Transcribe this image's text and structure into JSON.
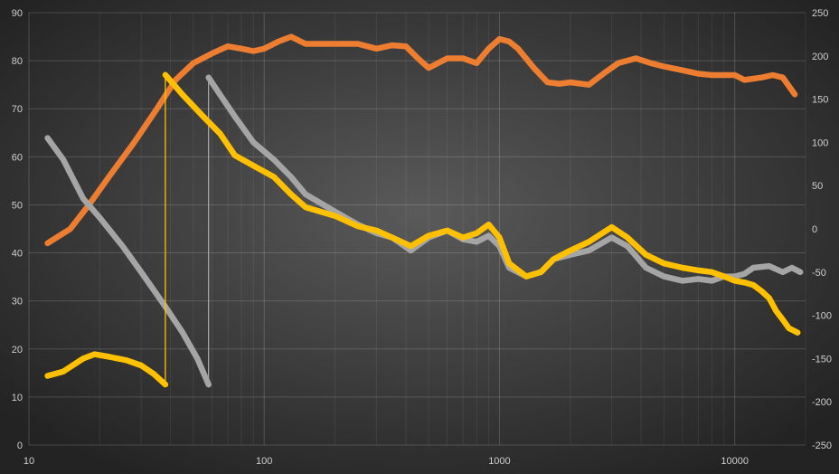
{
  "chart_data": {
    "type": "line",
    "title": "",
    "xlabel": "",
    "ylabel_left": "",
    "ylabel_right": "",
    "x_scale": "log",
    "xlim": [
      10,
      20000
    ],
    "ylim_left": [
      0,
      90
    ],
    "ylim_right": [
      -250,
      250
    ],
    "grid": true,
    "legend": "none",
    "background_colors": [
      "#5a5a5a",
      "#232323"
    ],
    "x_ticks": [
      10,
      100,
      1000,
      10000
    ],
    "x_tick_labels": [
      "10",
      "100",
      "1000",
      "10000"
    ],
    "y_left_ticks": [
      0,
      10,
      20,
      30,
      40,
      50,
      60,
      70,
      80,
      90
    ],
    "y_left_tick_labels": [
      "0",
      "10",
      "20",
      "30",
      "40",
      "50",
      "60",
      "70",
      "80",
      "90"
    ],
    "y_right_ticks": [
      -250,
      -200,
      -150,
      -100,
      -50,
      0,
      50,
      100,
      150,
      200,
      250
    ],
    "y_right_tick_labels": [
      "-250",
      "-200",
      "-150",
      "-100",
      "-50",
      "0",
      "50",
      "100",
      "150",
      "200",
      "250"
    ],
    "series": [
      {
        "axis": "left",
        "color": "#ed7d31",
        "points": [
          [
            12,
            42
          ],
          [
            15,
            45
          ],
          [
            18,
            50
          ],
          [
            22,
            56
          ],
          [
            28,
            63
          ],
          [
            35,
            70
          ],
          [
            42,
            76
          ],
          [
            50,
            79.5
          ],
          [
            60,
            81.5
          ],
          [
            70,
            83
          ],
          [
            80,
            82.5
          ],
          [
            90,
            82
          ],
          [
            100,
            82.5
          ],
          [
            115,
            84
          ],
          [
            130,
            85
          ],
          [
            150,
            83.5
          ],
          [
            200,
            83.5
          ],
          [
            250,
            83.5
          ],
          [
            300,
            82.5
          ],
          [
            350,
            83.2
          ],
          [
            400,
            83
          ],
          [
            450,
            80.5
          ],
          [
            500,
            78.5
          ],
          [
            600,
            80.5
          ],
          [
            700,
            80.5
          ],
          [
            800,
            79.5
          ],
          [
            900,
            82.5
          ],
          [
            1000,
            84.5
          ],
          [
            1100,
            84
          ],
          [
            1200,
            82.5
          ],
          [
            1400,
            78.5
          ],
          [
            1600,
            75.5
          ],
          [
            1800,
            75.2
          ],
          [
            2000,
            75.5
          ],
          [
            2400,
            75
          ],
          [
            2800,
            77.5
          ],
          [
            3200,
            79.5
          ],
          [
            3800,
            80.5
          ],
          [
            4400,
            79.5
          ],
          [
            5000,
            78.8
          ],
          [
            6000,
            78
          ],
          [
            7000,
            77.3
          ],
          [
            8000,
            77
          ],
          [
            10000,
            77
          ],
          [
            11000,
            76
          ],
          [
            13000,
            76.5
          ],
          [
            14500,
            77
          ],
          [
            16000,
            76.5
          ],
          [
            18000,
            73
          ]
        ]
      },
      {
        "axis": "right",
        "color": "#a5a5a5",
        "points": [
          [
            12,
            105
          ],
          [
            14,
            80
          ],
          [
            17,
            35
          ],
          [
            20,
            13
          ],
          [
            25,
            -20
          ],
          [
            30,
            -50
          ],
          [
            38,
            -90
          ],
          [
            45,
            -120
          ],
          [
            52,
            -150
          ],
          [
            58,
            -180
          ],
          [
            58,
            175
          ],
          [
            65,
            155
          ],
          [
            75,
            130
          ],
          [
            90,
            100
          ],
          [
            110,
            80
          ],
          [
            130,
            60
          ],
          [
            150,
            40
          ],
          [
            200,
            20
          ],
          [
            250,
            5
          ],
          [
            300,
            -5
          ],
          [
            350,
            -10
          ],
          [
            420,
            -25
          ],
          [
            500,
            -10
          ],
          [
            600,
            -2
          ],
          [
            700,
            -12
          ],
          [
            800,
            -15
          ],
          [
            900,
            -8
          ],
          [
            1000,
            -20
          ],
          [
            1100,
            -45
          ],
          [
            1300,
            -55
          ],
          [
            1500,
            -50
          ],
          [
            1700,
            -35
          ],
          [
            2000,
            -30
          ],
          [
            2400,
            -25
          ],
          [
            3000,
            -10
          ],
          [
            3500,
            -20
          ],
          [
            4200,
            -45
          ],
          [
            5000,
            -55
          ],
          [
            6000,
            -60
          ],
          [
            7000,
            -58
          ],
          [
            8000,
            -60
          ],
          [
            9000,
            -55
          ],
          [
            10000,
            -55
          ],
          [
            11000,
            -52
          ],
          [
            12000,
            -45
          ],
          [
            14000,
            -43
          ],
          [
            16000,
            -50
          ],
          [
            17500,
            -45
          ],
          [
            19000,
            -50
          ]
        ]
      },
      {
        "axis": "right",
        "color": "#ffc000",
        "points": [
          [
            12,
            -170
          ],
          [
            14,
            -165
          ],
          [
            17,
            -150
          ],
          [
            19,
            -145
          ],
          [
            22,
            -148
          ],
          [
            26,
            -152
          ],
          [
            30,
            -158
          ],
          [
            34,
            -168
          ],
          [
            38,
            -180
          ],
          [
            38,
            178
          ],
          [
            45,
            155
          ],
          [
            55,
            130
          ],
          [
            65,
            110
          ],
          [
            75,
            85
          ],
          [
            90,
            73
          ],
          [
            110,
            60
          ],
          [
            130,
            40
          ],
          [
            150,
            25
          ],
          [
            200,
            15
          ],
          [
            250,
            3
          ],
          [
            300,
            -2
          ],
          [
            350,
            -10
          ],
          [
            420,
            -20
          ],
          [
            500,
            -8
          ],
          [
            600,
            -2
          ],
          [
            700,
            -10
          ],
          [
            800,
            -5
          ],
          [
            900,
            5
          ],
          [
            1000,
            -10
          ],
          [
            1100,
            -40
          ],
          [
            1300,
            -55
          ],
          [
            1500,
            -50
          ],
          [
            1700,
            -35
          ],
          [
            2000,
            -25
          ],
          [
            2400,
            -15
          ],
          [
            3000,
            2
          ],
          [
            3500,
            -10
          ],
          [
            4200,
            -30
          ],
          [
            5000,
            -40
          ],
          [
            6000,
            -45
          ],
          [
            7000,
            -48
          ],
          [
            8000,
            -50
          ],
          [
            9000,
            -55
          ],
          [
            10000,
            -60
          ],
          [
            11000,
            -62
          ],
          [
            12000,
            -65
          ],
          [
            13000,
            -72
          ],
          [
            14000,
            -80
          ],
          [
            15000,
            -95
          ],
          [
            16000,
            -105
          ],
          [
            17000,
            -115
          ],
          [
            18500,
            -120
          ]
        ]
      }
    ]
  }
}
